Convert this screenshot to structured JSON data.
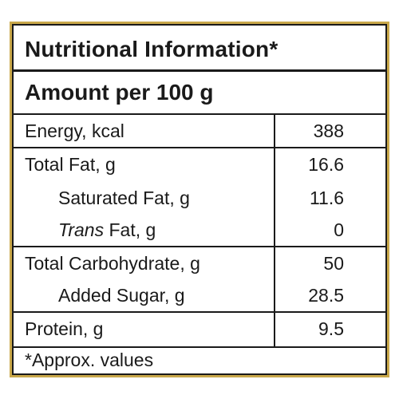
{
  "panel": {
    "title": "Nutritional Information*",
    "amount_label": "Amount per 100 g",
    "rows": [
      {
        "label": "Energy, kcal",
        "value": "388"
      },
      {
        "label": "Total Fat, g",
        "value": "16.6"
      },
      {
        "label": "Saturated Fat, g",
        "value": "11.6"
      },
      {
        "label_italic": "Trans",
        "label_rest": " Fat, g",
        "value": "0"
      },
      {
        "label": "Total Carbohydrate, g",
        "value": "50"
      },
      {
        "label": "Added Sugar, g",
        "value": "28.5"
      },
      {
        "label": "Protein, g",
        "value": "9.5"
      }
    ],
    "footnote": "*Approx. values"
  },
  "colors": {
    "border_gold": "#c9a84a",
    "text": "#1a1a1a",
    "background": "#ffffff"
  }
}
